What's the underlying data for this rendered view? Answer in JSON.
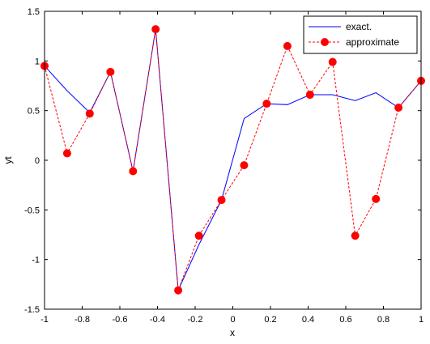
{
  "chart_data": {
    "type": "line",
    "xlabel": "x",
    "ylabel": "yt",
    "xlim": [
      -1,
      1
    ],
    "ylim": [
      -1.5,
      1.5
    ],
    "xticks": [
      "-1",
      "-0.8",
      "-0.6",
      "-0.4",
      "-0.2",
      "0",
      "0.2",
      "0.4",
      "0.6",
      "0.8",
      "1"
    ],
    "yticks": [
      "-1.5",
      "-1",
      "-0.5",
      "0",
      "0.5",
      "1",
      "1.5"
    ],
    "legend_position": "top-right",
    "grid": false,
    "series": [
      {
        "name": "exact.",
        "color": "#0000ff",
        "style": "solid",
        "marker": "none",
        "x": [
          -1,
          -0.88,
          -0.76,
          -0.65,
          -0.53,
          -0.41,
          -0.29,
          -0.18,
          -0.06,
          0.06,
          0.18,
          0.29,
          0.41,
          0.53,
          0.65,
          0.76,
          0.88,
          1
        ],
        "y": [
          0.95,
          0.7,
          0.48,
          0.89,
          -0.11,
          1.32,
          -1.31,
          -0.85,
          -0.4,
          0.42,
          0.57,
          0.56,
          0.66,
          0.66,
          0.6,
          0.68,
          0.53,
          0.8
        ]
      },
      {
        "name": "approximate",
        "color": "#ff0000",
        "style": "dashed",
        "marker": "circle",
        "x": [
          -1,
          -0.88,
          -0.76,
          -0.65,
          -0.53,
          -0.41,
          -0.29,
          -0.18,
          -0.06,
          0.06,
          0.18,
          0.29,
          0.41,
          0.53,
          0.65,
          0.76,
          0.88,
          1
        ],
        "y": [
          0.95,
          0.07,
          0.47,
          0.89,
          -0.11,
          1.32,
          -1.31,
          -0.76,
          -0.4,
          -0.05,
          0.57,
          1.15,
          0.66,
          0.99,
          -0.76,
          -0.39,
          0.53,
          0.8
        ]
      }
    ]
  }
}
